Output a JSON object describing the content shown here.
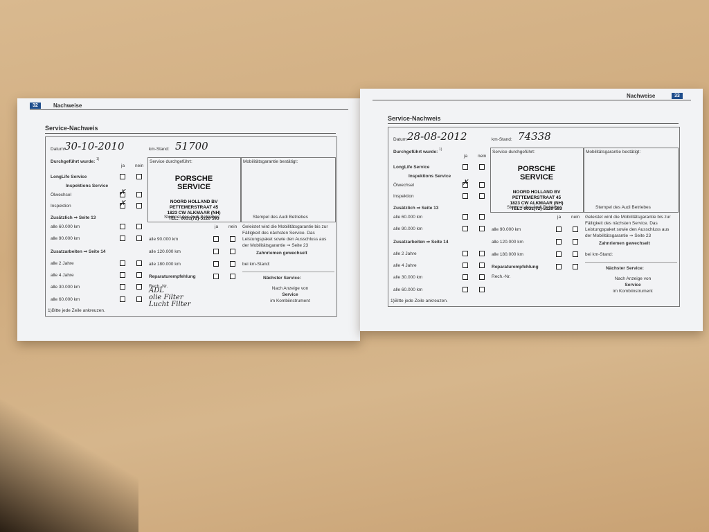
{
  "pages": [
    {
      "page_number": "32",
      "header": "Nachweise",
      "title": "Service-Nachweis",
      "date_label": "Datum:",
      "date": "30-10-2010",
      "km_label": "km-Stand:",
      "km": "51700",
      "performed_label": "Durchgeführt wurde:",
      "footnote_mark": "1)",
      "yes": "ja",
      "no": "nein",
      "items": [
        "LongLife Service",
        "Inspektions Service",
        "Ölwechsel",
        "Inspektion",
        "Zusätzlich ⇒ Seite 13",
        "alle 60.000 km",
        "alle 90.000 km",
        "Zusatzarbeiten ⇒ Seite 14",
        "alle 2 Jahre",
        "alle 4 Jahre",
        "alle 30.000 km",
        "alle 60.000 km"
      ],
      "service_label": "Service durchgeführt:",
      "stamp": [
        "PORSCHE",
        "SERVICE",
        "NOORD HOLLAND BV",
        "PETTEMERSTRAAT 45",
        "1823 CW ALKMAAR (NH)",
        "TEL.: 0031(72)-5120 593"
      ],
      "stamp_caption": "Stempel des Audi Betriebes",
      "mobility_label": "Mobilitätsgarantie bestätigt:",
      "mobility_caption": "Stempel des Audi Betriebes",
      "extra_items": [
        "alle 90.000 km",
        "alle 120.000 km",
        "alle 180.000 km",
        "Reparaturempfehlung"
      ],
      "invoice_label": "Rech.-Nr.",
      "handwritten_notes": [
        "ADL",
        "olie Filter",
        "Lucht Filter"
      ],
      "mobility_text": "Geleistet wird die Mobilitätsgarantie bis zur Fälligkeit des nächsten Service. Das Leistungspaket sowie den Ausschluss aus der Mobilitätsgarantie ⇒ Seite 23",
      "timing_belt": "Zahnriemen gewechselt",
      "timing_km": "bei km-Stand:",
      "next_service": "Nächster Service:",
      "next_lines": [
        "Nach Anzeige von",
        "Service",
        "im Kombiinstrument"
      ],
      "footnote": "1)Bitte jede Zeile ankreuzen."
    },
    {
      "page_number": "33",
      "header": "Nachweise",
      "title": "Service-Nachweis",
      "date_label": "Datum:",
      "date": "28-08-2012",
      "km_label": "km-Stand:",
      "km": "74338",
      "performed_label": "Durchgeführt wurde:",
      "footnote_mark": "1)",
      "yes": "ja",
      "no": "nein",
      "items": [
        "LongLife Service",
        "Inspektions Service",
        "Ölwechsel",
        "Inspektion",
        "Zusätzlich ⇒ Seite 13",
        "alle 60.000 km",
        "alle 90.000 km",
        "Zusatzarbeiten ⇒ Seite 14",
        "alle 2 Jahre",
        "alle 4 Jahre",
        "alle 30.000 km",
        "alle 60.000 km"
      ],
      "service_label": "Service durchgeführt:",
      "stamp": [
        "PORSCHE",
        "SERVICE",
        "NOORD HOLLAND BV",
        "PETTEMERSTRAAT 45",
        "1823 CW ALKMAAR (NH)",
        "TEL.: 0031(72)-5120 593"
      ],
      "stamp_caption": "Stempel des Audi Betriebes",
      "mobility_label": "Mobilitätsgarantie bestätigt:",
      "mobility_caption": "Stempel des Audi Betriebes",
      "extra_items": [
        "alle 90.000 km",
        "alle 120.000 km",
        "alle 180.000 km",
        "Reparaturempfehlung"
      ],
      "invoice_label": "Rech.-Nr.",
      "mobility_text": "Geleistet wird die Mobilitätsgarantie bis zur Fälligkeit des nächsten Service. Das Leistungspaket sowie den Ausschluss aus der Mobilitätsgarantie ⇒ Seite 23",
      "timing_belt": "Zahnriemen gewechselt",
      "timing_km": "bei km-Stand:",
      "next_service": "Nächster Service:",
      "next_lines": [
        "Nach Anzeige von",
        "Service",
        "im Kombiinstrument"
      ],
      "footnote": "1)Bitte jede Zeile ankreuzen."
    }
  ]
}
